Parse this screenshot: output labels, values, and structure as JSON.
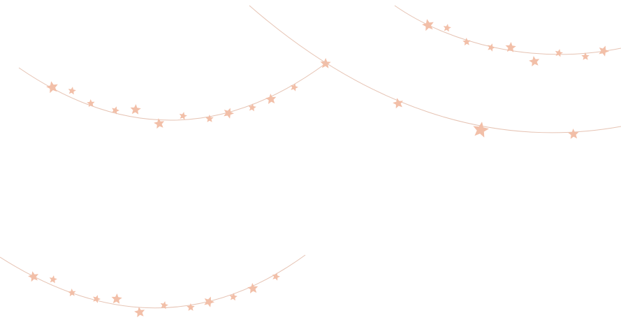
{
  "colors": {
    "background": "#ffffff",
    "string": "#e6c3b3",
    "star": "#f2bfa8"
  },
  "garlands": [
    {
      "name": "garland-top-left",
      "star_count": 13
    },
    {
      "name": "garland-long-right",
      "star_count": 5
    },
    {
      "name": "garland-top-right",
      "star_count": 10
    },
    {
      "name": "garland-bottom-left",
      "star_count": 13
    }
  ]
}
